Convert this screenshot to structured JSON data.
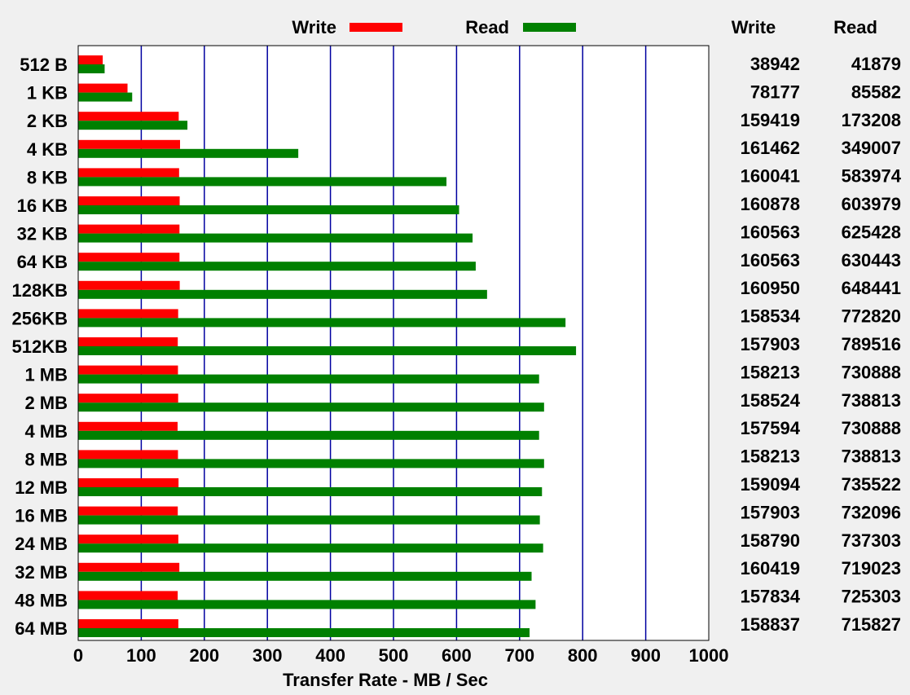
{
  "chart_data": {
    "type": "bar",
    "orientation": "horizontal",
    "xlabel": "Transfer Rate - MB / Sec",
    "xlim": [
      0,
      1000
    ],
    "xticks": [
      0,
      100,
      200,
      300,
      400,
      500,
      600,
      700,
      800,
      900,
      1000
    ],
    "grid": "vertical",
    "legend_placement": "top",
    "categories": [
      "512 B",
      "1 KB",
      "2 KB",
      "4 KB",
      "8 KB",
      "16 KB",
      "32 KB",
      "64 KB",
      "128KB",
      "256KB",
      "512KB",
      "1 MB",
      "2 MB",
      "4 MB",
      "8 MB",
      "12 MB",
      "16 MB",
      "24 MB",
      "32 MB",
      "48 MB",
      "64 MB"
    ],
    "series": [
      {
        "name": "Write",
        "color": "#ff0000",
        "values": [
          38.9,
          78.2,
          159.4,
          161.5,
          160.0,
          160.9,
          160.6,
          160.6,
          161.0,
          158.5,
          157.9,
          158.2,
          158.5,
          157.6,
          158.2,
          159.1,
          157.9,
          158.8,
          160.4,
          157.8,
          158.8
        ]
      },
      {
        "name": "Read",
        "color": "#008000",
        "values": [
          41.9,
          85.6,
          173.2,
          349.0,
          584.0,
          604.0,
          625.4,
          630.4,
          648.4,
          772.8,
          789.5,
          730.9,
          738.8,
          730.9,
          738.8,
          735.5,
          732.1,
          737.3,
          719.0,
          725.3,
          715.8
        ]
      }
    ],
    "table": {
      "headers": [
        "Write",
        "Read"
      ],
      "write": [
        "38942",
        "78177",
        "159419",
        "161462",
        "160041",
        "160878",
        "160563",
        "160563",
        "160950",
        "158534",
        "157903",
        "158213",
        "158524",
        "157594",
        "158213",
        "159094",
        "157903",
        "158790",
        "160419",
        "157834",
        "158837"
      ],
      "read": [
        "41879",
        "85582",
        "173208",
        "349007",
        "583974",
        "603979",
        "625428",
        "630443",
        "648441",
        "772820",
        "789516",
        "730888",
        "738813",
        "730888",
        "738813",
        "735522",
        "732096",
        "737303",
        "719023",
        "725303",
        "715827"
      ]
    },
    "grid_color": "#0000a0",
    "plot_background": "#ffffff"
  }
}
